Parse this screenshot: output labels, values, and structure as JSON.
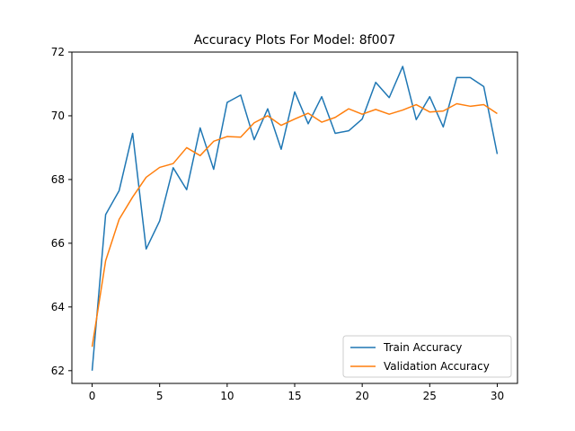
{
  "chart_data": {
    "type": "line",
    "title": "Accuracy Plots For Model: 8f007",
    "xlabel": "",
    "ylabel": "",
    "xlim": [
      -1.5,
      31.5
    ],
    "ylim": [
      61.6,
      72.0
    ],
    "xticks": [
      0,
      5,
      10,
      15,
      20,
      25,
      30
    ],
    "yticks": [
      62,
      64,
      66,
      68,
      70,
      72
    ],
    "legend_position": "bottom-right",
    "grid": false,
    "x": [
      0,
      1,
      2,
      3,
      4,
      5,
      6,
      7,
      8,
      9,
      10,
      11,
      12,
      13,
      14,
      15,
      16,
      17,
      18,
      19,
      20,
      21,
      22,
      23,
      24,
      25,
      26,
      27,
      28,
      29,
      30
    ],
    "series": [
      {
        "name": "Train Accuracy",
        "color": "#1f77b4",
        "values": [
          62.0,
          66.9,
          67.65,
          69.45,
          65.82,
          66.7,
          68.37,
          67.68,
          69.62,
          68.32,
          70.42,
          70.65,
          69.25,
          70.22,
          68.95,
          70.75,
          69.75,
          70.6,
          69.45,
          69.53,
          69.9,
          71.05,
          70.57,
          71.55,
          69.88,
          70.6,
          69.65,
          71.2,
          71.2,
          70.92,
          68.8
        ]
      },
      {
        "name": "Validation Accuracy",
        "color": "#ff7f0e",
        "values": [
          62.75,
          65.45,
          66.75,
          67.45,
          68.07,
          68.38,
          68.5,
          69.0,
          68.75,
          69.2,
          69.35,
          69.33,
          69.78,
          70.0,
          69.7,
          69.9,
          70.08,
          69.8,
          69.95,
          70.22,
          70.05,
          70.2,
          70.05,
          70.18,
          70.35,
          70.12,
          70.15,
          70.38,
          70.3,
          70.35,
          70.07
        ]
      }
    ]
  }
}
